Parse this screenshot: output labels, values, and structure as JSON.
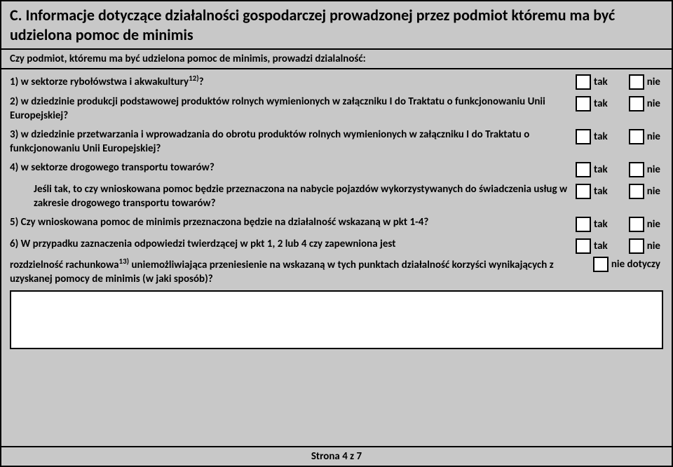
{
  "section": {
    "title": "C. Informacje dotyczące działalności gospodarczej prowadzonej przez podmiot któremu ma być udzielona pomoc de minimis"
  },
  "intro": "Czy podmiot, któremu ma być udzielona pomoc de minimis, prowadzi dzialalność:",
  "questions": {
    "q1": "1) w sektorze rybołówstwa i akwakultury",
    "q1_sup": "12)",
    "q1_end": "?",
    "q2": "2) w dziedzinie produkcji podstawowej produktów rolnych wymienionych w załączniku I do Traktatu o funkcjonowaniu Unii Europejskiej?",
    "q3": "3) w dziedzinie przetwarzania i wprowadzania do obrotu produktów rolnych wymienionych w załączniku I do Traktatu o funkcjonowaniu Unii Europejskiej?",
    "q4": "4) w sektorze drogowego transportu towarów?",
    "q4a": "Jeśli tak, to czy wnioskowana pomoc będzie przeznaczona na nabycie pojazdów wykorzystywanych do świadczenia usług w zakresie drogowego transportu towarów?",
    "q5": "5) Czy wnioskowana pomoc de minimis przeznaczona będzie na działalność wskazaną w pkt 1-4?",
    "q6a": "6) W przypadku zaznaczenia odpowiedzi twierdzącej w pkt 1, 2 lub 4 czy zapewniona jest",
    "q6b_pre": "rozdzielność rachunkowa",
    "q6b_sup": "13)",
    "q6b_post": " uniemożliwiająca przeniesienie na wskazaną w tych punktach działalność korzyści wynikających z uzyskanej pomocy de minimis (w jaki sposób)?"
  },
  "labels": {
    "yes": "tak",
    "no": "nie",
    "na": "nie dotyczy"
  },
  "footer": "Strona 4 z 7"
}
